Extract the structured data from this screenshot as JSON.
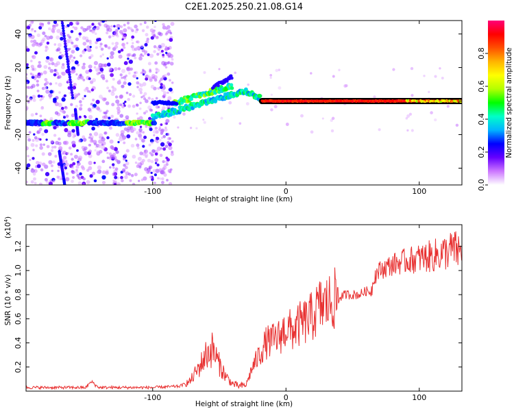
{
  "figure_title": "C2E1.2025.250.21.08.G14",
  "chart_data": [
    {
      "type": "heatmap",
      "title": "C2E1.2025.250.21.08.G14",
      "xlabel": "Height of straight line (km)",
      "ylabel": "Frequency (Hz)",
      "xlim": [
        -195,
        132
      ],
      "ylim": [
        -50,
        48
      ],
      "xticks": [
        -100,
        0,
        100
      ],
      "xtick_labels": [
        "-100",
        "0",
        "100"
      ],
      "yticks": [
        -40,
        -20,
        0,
        20,
        40
      ],
      "ytick_labels": [
        "-40",
        "-20",
        "0",
        "20",
        "40"
      ],
      "colorbar": {
        "label": "Normalized spectral amplitude",
        "range": [
          0,
          1
        ],
        "ticks": [
          0.0,
          0.2,
          0.4,
          0.6,
          0.8
        ],
        "tick_labels": [
          "0.0",
          "0.2",
          "0.4",
          "0.6",
          "0.8"
        ],
        "stops": [
          "#ffffff",
          "#cc77ff",
          "#6600ff",
          "#0000ff",
          "#00b4ff",
          "#00ffc8",
          "#00ff00",
          "#b4ff00",
          "#ffff00",
          "#ffb400",
          "#ff5000",
          "#ff0000",
          "#ff0078"
        ]
      },
      "features": {
        "left_band": {
          "x": [
            -195,
            -98
          ],
          "freq": -13
        },
        "rising_track": {
          "x": [
            -100,
            -45,
            -30,
            -18
          ],
          "freq": [
            -10,
            3,
            6,
            1
          ]
        },
        "dominant_line": {
          "x": [
            -18,
            132
          ],
          "freq": 0
        },
        "noise_region_x": [
          -195,
          -85
        ]
      }
    },
    {
      "type": "line",
      "xlabel": "Height of straight line (km)",
      "ylabel": "SNR (10 * v/v)",
      "y_multiplier": "(x10^4)",
      "xlim": [
        -195,
        132
      ],
      "ylim": [
        0,
        1.38
      ],
      "xticks": [
        -100,
        0,
        100
      ],
      "xtick_labels": [
        "-100",
        "0",
        "100"
      ],
      "yticks": [
        0.2,
        0.4,
        0.6,
        0.8,
        1.0,
        1.2
      ],
      "ytick_labels": [
        "0.2",
        "0.4",
        "0.6",
        "0.8",
        "1.0",
        "1.2"
      ],
      "color": "#e83030",
      "series": [
        {
          "name": "SNR",
          "x": [
            -195,
            -170,
            -150,
            -145,
            -140,
            -100,
            -80,
            -72,
            -65,
            -60,
            -55,
            -50,
            -45,
            -40,
            -35,
            -30,
            -25,
            -20,
            -15,
            -10,
            -5,
            0,
            5,
            10,
            15,
            20,
            25,
            30,
            35,
            40,
            45,
            50,
            55,
            60,
            64,
            66,
            70,
            80,
            90,
            100,
            110,
            120,
            125,
            132
          ],
          "y": [
            0.03,
            0.03,
            0.03,
            0.06,
            0.03,
            0.03,
            0.04,
            0.08,
            0.2,
            0.3,
            0.35,
            0.22,
            0.12,
            0.06,
            0.04,
            0.05,
            0.2,
            0.3,
            0.4,
            0.42,
            0.45,
            0.52,
            0.5,
            0.55,
            0.58,
            0.62,
            0.7,
            0.72,
            0.75,
            0.78,
            0.8,
            0.8,
            0.8,
            0.83,
            0.82,
            0.95,
            1.0,
            1.05,
            1.08,
            1.1,
            1.12,
            1.15,
            1.18,
            1.15
          ]
        }
      ]
    }
  ]
}
